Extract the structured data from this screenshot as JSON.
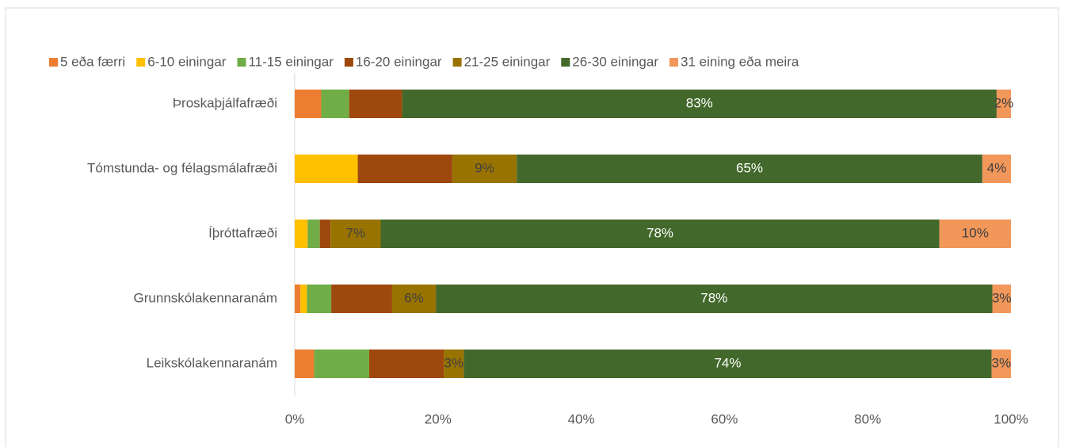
{
  "chart_data": {
    "type": "stacked_barh",
    "categories": [
      "Þroskaþjálfafræði",
      "Tómstunda- og félagsmálafræði",
      "Íþróttafræði",
      "Grunnskólakennaranám",
      "Leikskólakennaranám"
    ],
    "series": [
      {
        "name": "5 eða færri",
        "color": "#ed7d31",
        "values": [
          3.7,
          0,
          0,
          0.8,
          2.7
        ]
      },
      {
        "name": "6-10 einingar",
        "color": "#ffc000",
        "values": [
          0,
          8.8,
          1.8,
          0.9,
          0
        ]
      },
      {
        "name": "11-15 einingar",
        "color": "#70ad47",
        "values": [
          3.9,
          0,
          1.7,
          3.4,
          7.7
        ]
      },
      {
        "name": "16-20 einingar",
        "color": "#9e480e",
        "values": [
          7.4,
          13.2,
          1.5,
          8.5,
          10.4
        ]
      },
      {
        "name": "21-25 einingar",
        "color": "#997300",
        "values": [
          0,
          9,
          7,
          6.1,
          2.8
        ],
        "value_labels": [
          null,
          "9%",
          "7%",
          "6%",
          "3%"
        ],
        "label_color": "#404040"
      },
      {
        "name": "26-30 einingar",
        "color": "#43682b",
        "values": [
          83,
          65,
          78,
          77.7,
          73.7
        ],
        "value_labels": [
          "83%",
          "65%",
          "78%",
          "78%",
          "74%"
        ],
        "label_color": "#ffffff"
      },
      {
        "name": "31 eining eða meira",
        "color": "#f1975a",
        "values": [
          2,
          4,
          10,
          2.6,
          2.7
        ],
        "value_labels": [
          "2%",
          "4%",
          "10%",
          "3%",
          "3%"
        ],
        "label_color": "#404040"
      }
    ],
    "xlim": [
      0,
      100
    ],
    "xticks": [
      {
        "value": 0,
        "label": "0%"
      },
      {
        "value": 20,
        "label": "20%"
      },
      {
        "value": 40,
        "label": "40%"
      },
      {
        "value": 60,
        "label": "60%"
      },
      {
        "value": 80,
        "label": "80%"
      },
      {
        "value": 100,
        "label": "100%"
      }
    ],
    "legend": "top"
  }
}
